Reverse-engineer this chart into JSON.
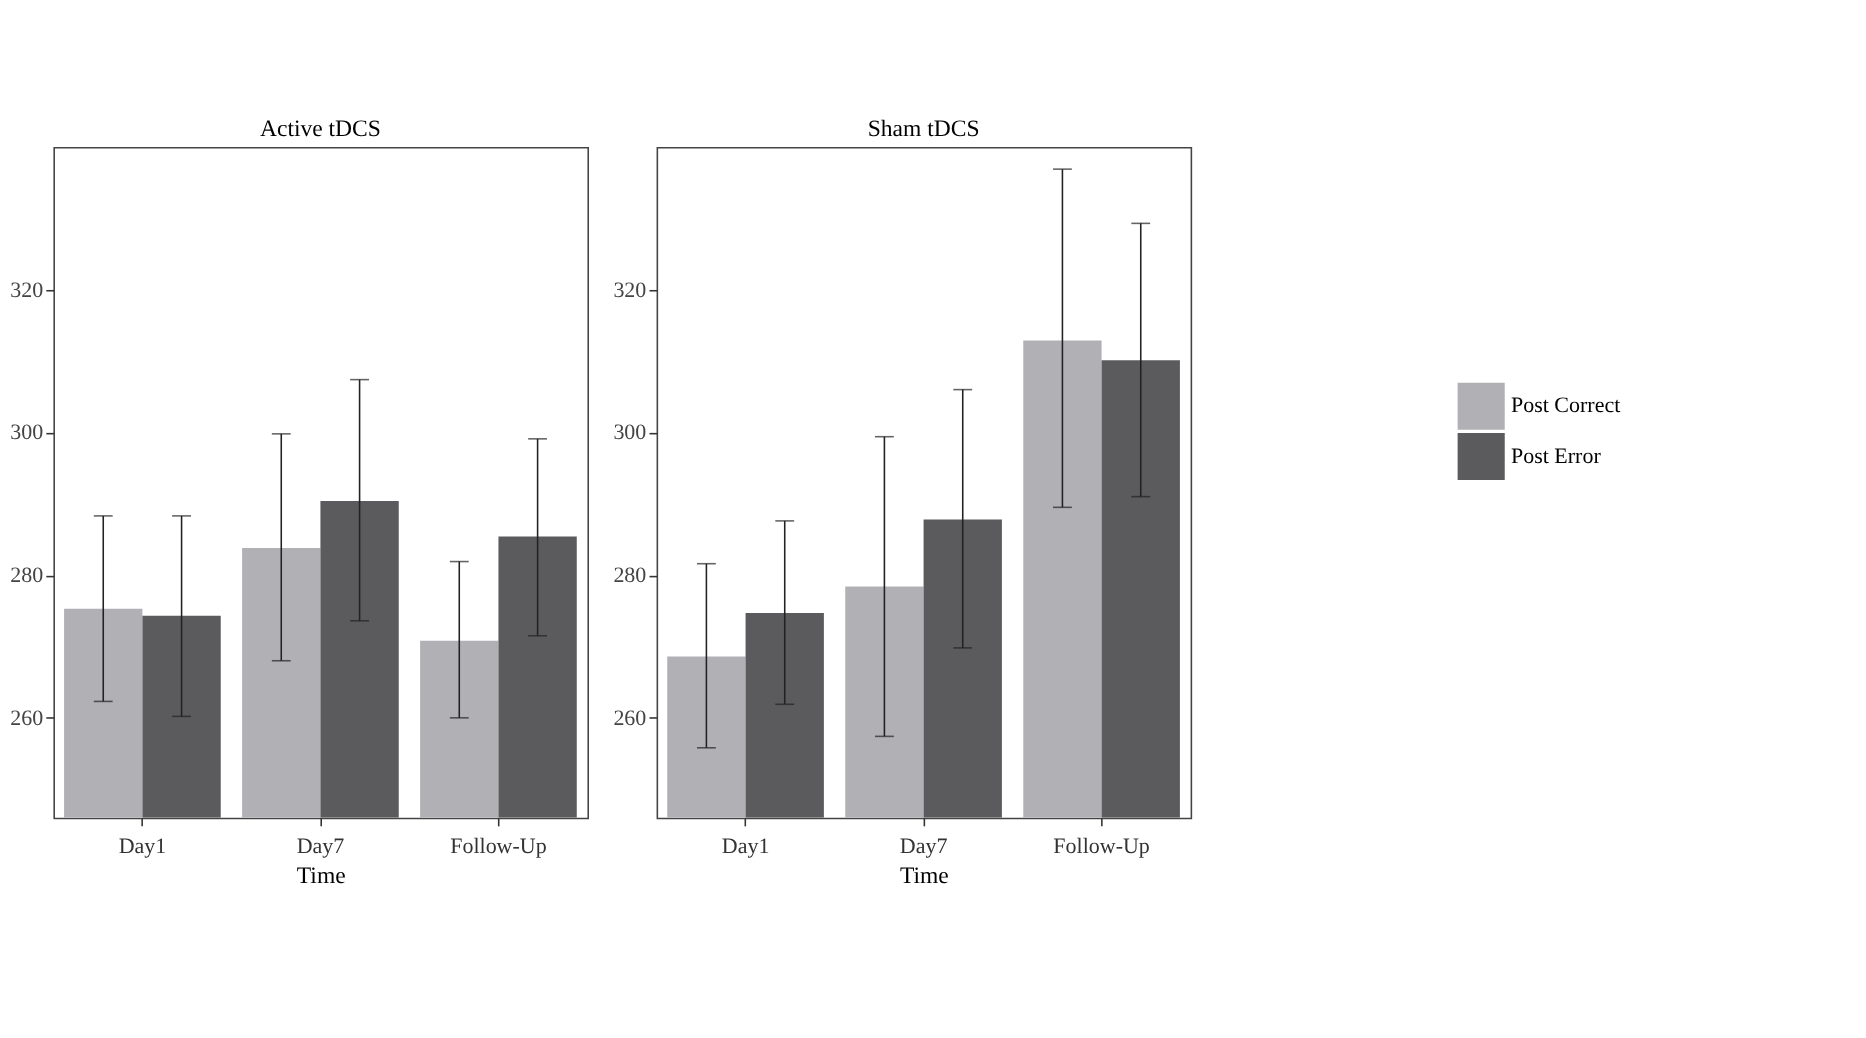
{
  "chart_data": [
    {
      "type": "bar",
      "title": "Active tDCS",
      "xlabel": "Time",
      "categories": [
        "Day1",
        "Day7",
        "Follow-Up"
      ],
      "ylim": [
        246,
        340
      ],
      "yticks": [
        260,
        280,
        300,
        320
      ],
      "grid": false,
      "legend": false,
      "series": [
        {
          "color": "#b1b1b5",
          "values": [
            275.3,
            283.8,
            270.8
          ],
          "errors": [
            [
              262.3,
              288.3
            ],
            [
              268.0,
              299.8
            ],
            [
              260.0,
              281.9
            ]
          ]
        },
        {
          "color": "#5b5b5e",
          "values": [
            274.3,
            290.4,
            285.4
          ],
          "errors": [
            [
              260.2,
              288.3
            ],
            [
              273.6,
              307.4
            ],
            [
              271.5,
              299.1
            ]
          ]
        }
      ]
    },
    {
      "type": "bar",
      "title": "Sham tDCS",
      "xlabel": "Time",
      "categories": [
        "Day1",
        "Day7",
        "Follow-Up"
      ],
      "ylim": [
        246,
        340
      ],
      "yticks": [
        260,
        280,
        300,
        320
      ],
      "grid": false,
      "legend": "right",
      "series": [
        {
          "name": "Post Correct",
          "color": "#b1b1b5",
          "values": [
            268.6,
            278.4,
            312.9
          ],
          "errors": [
            [
              255.8,
              281.6
            ],
            [
              257.4,
              299.4
            ],
            [
              289.5,
              336.9
            ]
          ]
        },
        {
          "name": "Post Error",
          "color": "#5b5b5e",
          "values": [
            274.7,
            287.8,
            310.1
          ],
          "errors": [
            [
              261.9,
              287.6
            ],
            [
              269.8,
              306.0
            ],
            [
              291.0,
              329.3
            ]
          ]
        }
      ]
    }
  ]
}
